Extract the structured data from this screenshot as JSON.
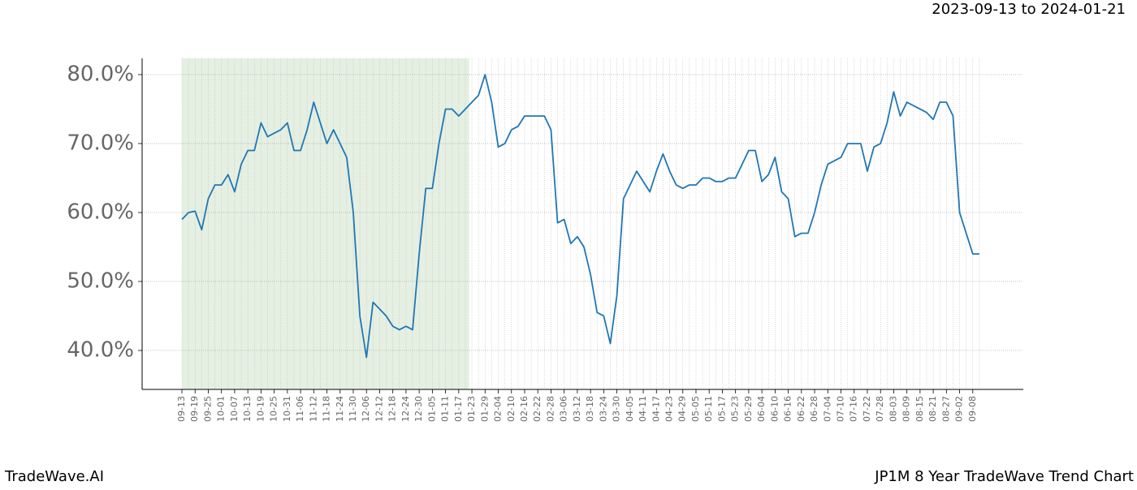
{
  "header": {
    "date_range": "2023-09-13 to 2024-01-21"
  },
  "footer": {
    "left": "TradeWave.AI",
    "right": "JP1M 8 Year TradeWave Trend Chart"
  },
  "chart_data": {
    "type": "line",
    "categories": [
      "09-13",
      null,
      "09-19",
      null,
      "09-25",
      null,
      "10-01",
      null,
      "10-07",
      null,
      "10-13",
      null,
      "10-19",
      null,
      "10-25",
      null,
      "10-31",
      null,
      "11-06",
      null,
      "11-12",
      null,
      "11-18",
      null,
      "11-24",
      null,
      "11-30",
      null,
      "12-06",
      null,
      "12-12",
      null,
      "12-18",
      null,
      "12-24",
      null,
      "12-30",
      null,
      "01-05",
      null,
      "01-11",
      null,
      "01-17",
      null,
      "01-23",
      null,
      "01-29",
      null,
      "02-04",
      null,
      "02-10",
      null,
      "02-16",
      null,
      "02-22",
      null,
      "02-28",
      null,
      "03-06",
      null,
      "03-12",
      null,
      "03-18",
      null,
      "03-24",
      null,
      "03-30",
      null,
      "04-05",
      null,
      "04-11",
      null,
      "04-17",
      null,
      "04-23",
      null,
      "04-29",
      null,
      "05-05",
      null,
      "05-11",
      null,
      "05-17",
      null,
      "05-23",
      null,
      "05-29",
      null,
      "06-04",
      null,
      "06-10",
      null,
      "06-16",
      null,
      "06-22",
      null,
      "06-28",
      null,
      "07-04",
      null,
      "07-10",
      null,
      "07-16",
      null,
      "07-22",
      null,
      "07-28",
      null,
      "08-03",
      null,
      "08-09",
      null,
      "08-15",
      null,
      "08-21",
      null,
      "08-27",
      null,
      "09-02",
      null,
      "09-08",
      null
    ],
    "series": [
      {
        "color": "#1f77b4",
        "values": [
          59,
          60,
          60.2,
          57.5,
          62,
          64,
          64,
          65.5,
          63,
          67,
          69,
          69,
          73,
          71,
          71.5,
          72,
          73,
          69,
          69,
          72,
          76,
          73,
          70,
          72,
          70,
          68,
          60,
          45,
          39,
          47,
          46,
          45,
          43.5,
          43,
          43.5,
          43,
          54,
          63.5,
          63.5,
          70,
          75,
          75,
          74,
          75,
          76,
          77,
          80,
          76,
          69.5,
          70,
          72,
          72.5,
          74,
          74,
          74,
          74,
          72,
          58.5,
          59,
          55.5,
          56.5,
          55,
          51,
          45.5,
          45,
          41,
          48,
          62,
          64,
          66,
          64.5,
          63,
          66,
          68.5,
          66,
          64,
          63.5,
          64,
          64,
          65,
          65,
          64.5,
          64.5,
          65,
          65,
          67,
          69,
          69,
          64.5,
          65.5,
          68,
          63,
          62,
          56.5,
          57,
          57,
          60,
          64,
          67,
          67.5,
          68,
          70,
          70,
          70,
          66,
          69.5,
          70,
          73,
          77.5,
          74,
          76,
          75.5,
          75,
          74.5,
          73.5,
          76,
          76,
          74,
          60,
          57,
          54,
          54
        ]
      }
    ],
    "ylim": [
      34.35,
      82.35
    ],
    "yticks": [
      {
        "value": 40,
        "label": "40.0%"
      },
      {
        "value": 50,
        "label": "50.0%"
      },
      {
        "value": 60,
        "label": "60.0%"
      },
      {
        "value": 70,
        "label": "70.0%"
      },
      {
        "value": 80,
        "label": "80.0%"
      }
    ],
    "grid": true,
    "highlight_span": [
      0,
      43.6
    ],
    "highlight_color": "#e5f0e2"
  }
}
